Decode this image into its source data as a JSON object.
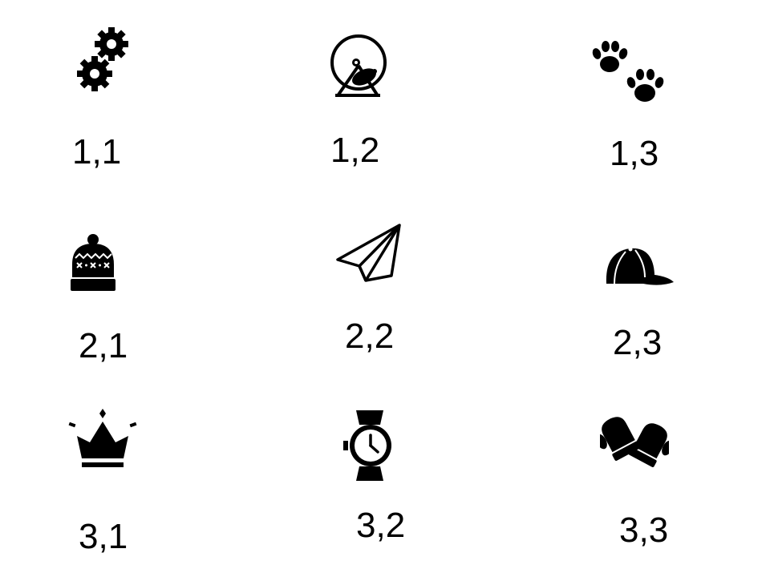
{
  "grid": {
    "cells": [
      {
        "label": "1,1",
        "icon": "gears-icon"
      },
      {
        "label": "1,2",
        "icon": "hamster-wheel-icon"
      },
      {
        "label": "1,3",
        "icon": "paw-prints-icon"
      },
      {
        "label": "2,1",
        "icon": "beanie-hat-icon"
      },
      {
        "label": "2,2",
        "icon": "paper-plane-icon"
      },
      {
        "label": "2,3",
        "icon": "baseball-cap-icon"
      },
      {
        "label": "3,1",
        "icon": "crown-icon"
      },
      {
        "label": "3,2",
        "icon": "wristwatch-icon"
      },
      {
        "label": "3,3",
        "icon": "mittens-icon"
      }
    ]
  },
  "colors": {
    "foreground": "#000000",
    "background": "#ffffff"
  }
}
